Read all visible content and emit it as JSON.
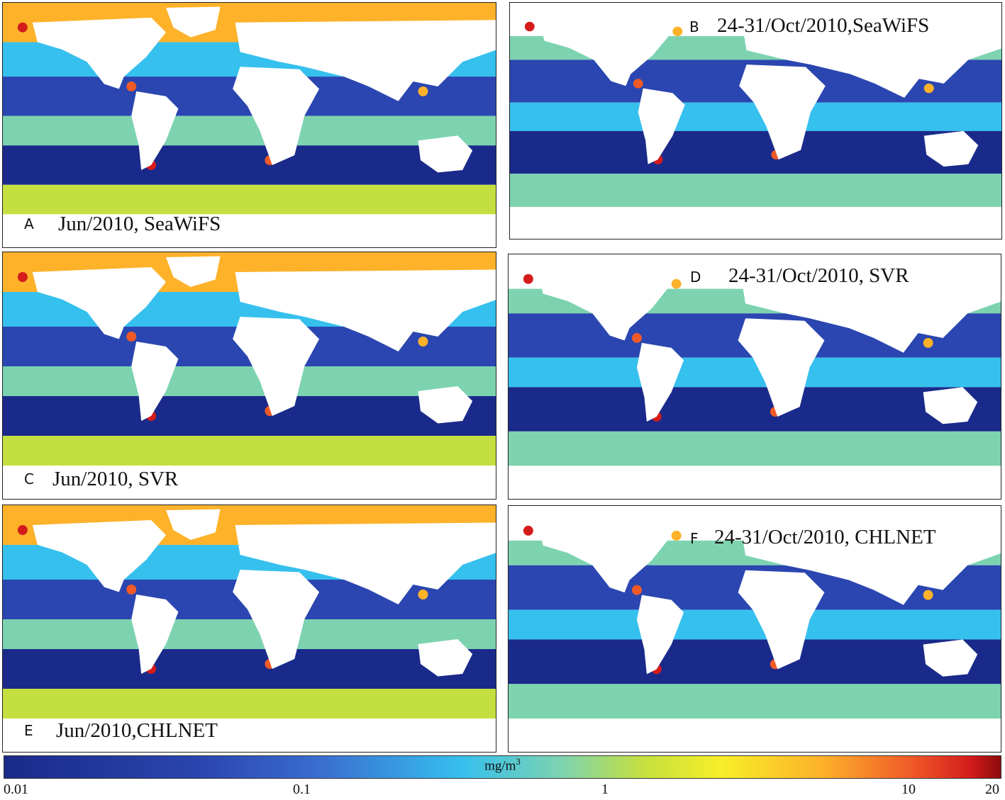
{
  "panels": [
    {
      "id": "A",
      "label": "A",
      "title": "Jun/2010, SeaWiFS",
      "period": "jun"
    },
    {
      "id": "B",
      "label": "B",
      "title": "24-31/Oct/2010,SeaWiFS",
      "period": "oct"
    },
    {
      "id": "C",
      "label": "C",
      "title": "Jun/2010, SVR",
      "period": "jun"
    },
    {
      "id": "D",
      "label": "D",
      "title": "24-31/Oct/2010, SVR",
      "period": "oct"
    },
    {
      "id": "E",
      "label": "E",
      "title": "Jun/2010,CHLNET",
      "period": "jun"
    },
    {
      "id": "F",
      "label": "F",
      "title": "24-31/Oct/2010, CHLNET",
      "period": "oct"
    }
  ],
  "colorbar": {
    "unit": "mg/m",
    "unit_superscript": "3",
    "scale": "log",
    "range": [
      0.01,
      20
    ],
    "ticks": [
      "0.01",
      "0.1",
      "1",
      "10",
      "20"
    ],
    "colors": [
      "#1a2a8a",
      "#2b46b0",
      "#3a6fd0",
      "#36c0ee",
      "#7dd3b0",
      "#c4e040",
      "#f7ee28",
      "#fdb22a",
      "#f05a28",
      "#d41c1c",
      "#8b0a0a"
    ]
  }
}
